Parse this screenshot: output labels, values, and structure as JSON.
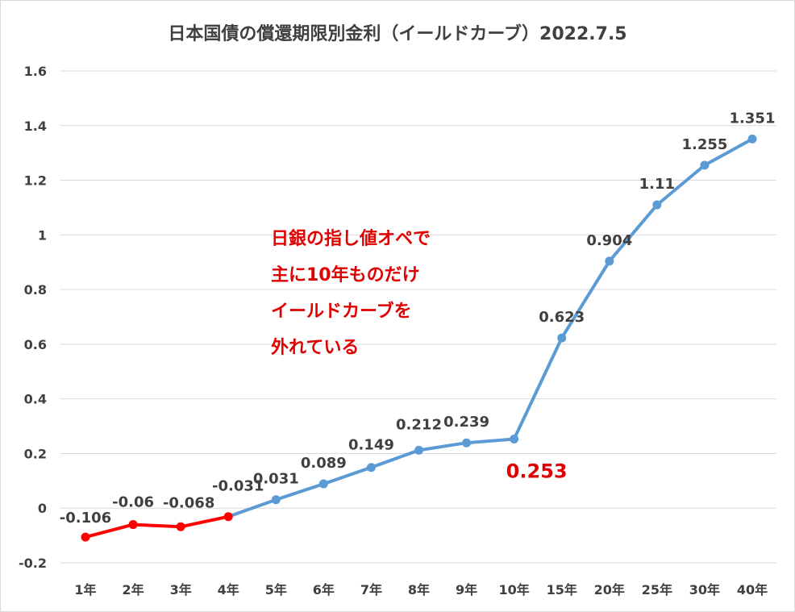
{
  "chart_data": {
    "type": "line",
    "title": "日本国債の償還期限別金利（イールドカーブ）2022.7.5",
    "categories": [
      "1年",
      "2年",
      "3年",
      "4年",
      "5年",
      "6年",
      "7年",
      "8年",
      "9年",
      "10年",
      "15年",
      "20年",
      "25年",
      "30年",
      "40年"
    ],
    "values": [
      -0.106,
      -0.06,
      -0.068,
      -0.031,
      0.031,
      0.089,
      0.149,
      0.212,
      0.239,
      0.253,
      0.623,
      0.904,
      1.11,
      1.255,
      1.351
    ],
    "labels": [
      "-0.106",
      "-0.06",
      "-0.068",
      "-0.031",
      "0.031",
      "0.089",
      "0.149",
      "0.212",
      "0.239",
      "0.253",
      "0.623",
      "0.904",
      "1.11",
      "1.255",
      "1.351"
    ],
    "yticks": [
      "1.6",
      "1.4",
      "1.2",
      "1",
      "0.8",
      "0.6",
      "0.4",
      "0.2",
      "0",
      "-0.2"
    ],
    "ylim": [
      -0.2,
      1.6
    ],
    "grid": true,
    "colors": {
      "main": "#5b9bd5",
      "highlight": "#ff0000",
      "highlight_label": "#e00000"
    },
    "highlight_range": [
      0,
      3
    ],
    "highlight_label_index": 9,
    "annotation": [
      "日銀の指し値オペで",
      "主に10年ものだけ",
      "イールドカーブを",
      "外れている"
    ]
  }
}
